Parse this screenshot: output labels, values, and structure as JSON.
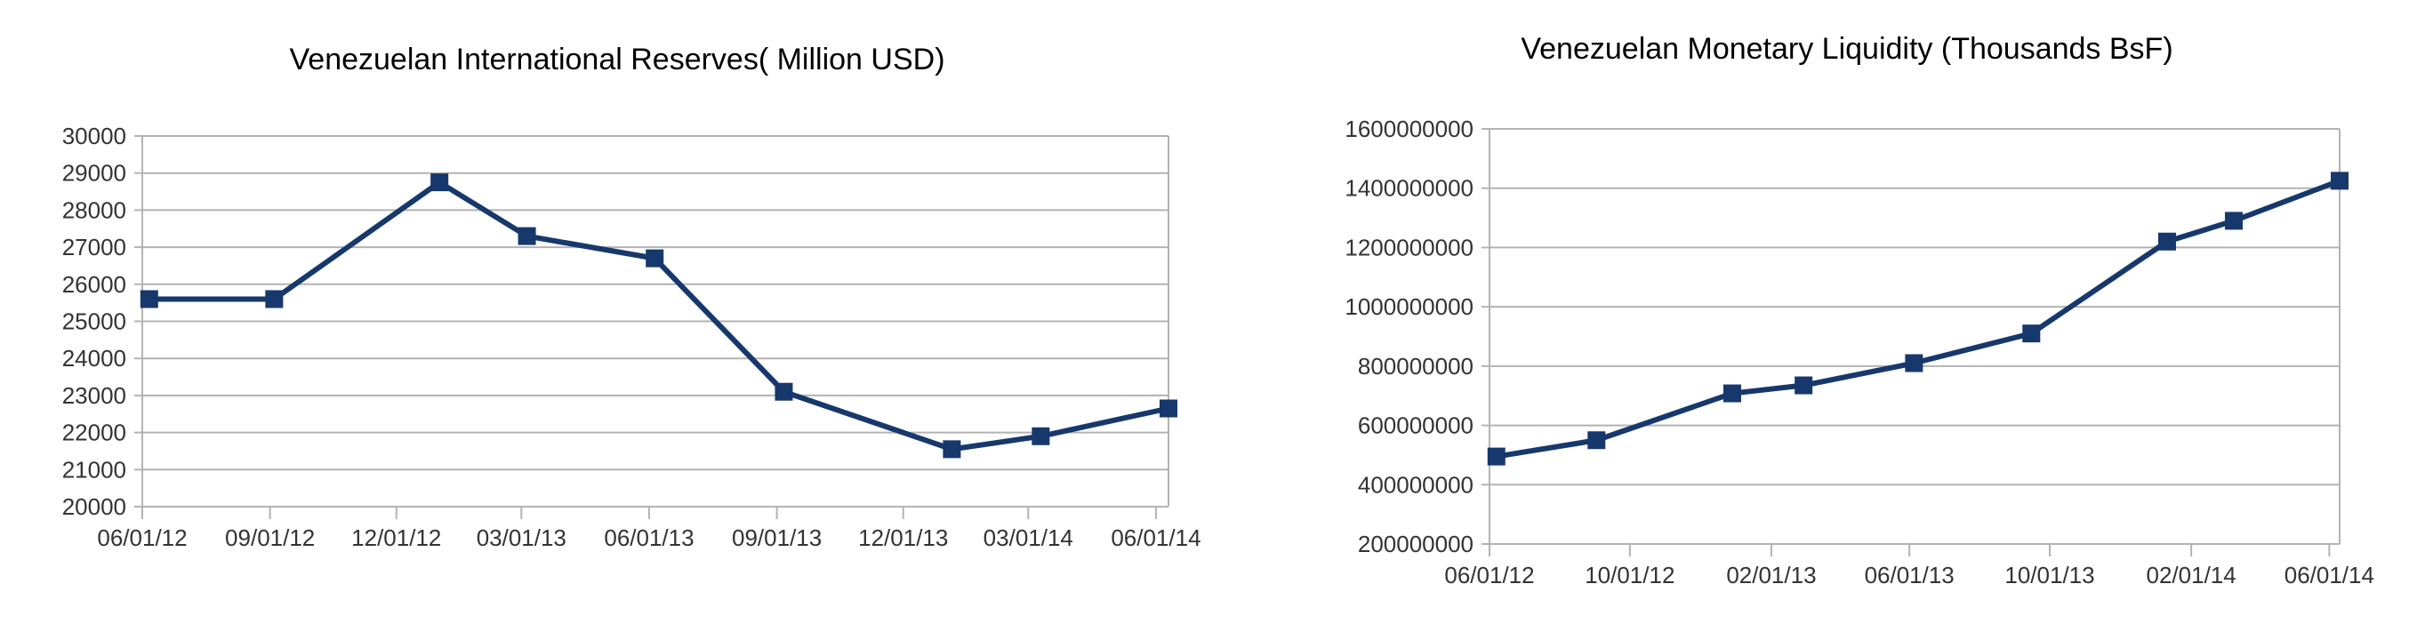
{
  "colors": {
    "series": "#17386c",
    "grid": "#b3b3b3",
    "axis": "#b3b3b3",
    "text": "#333333",
    "title": "#333333"
  },
  "chart_data": [
    {
      "type": "line",
      "title": "Venezuelan International Reserves( Million USD)",
      "xlabel": "",
      "ylabel": "",
      "x_axis_type": "date",
      "x_tick_labels": [
        "06/01/12",
        "09/01/12",
        "12/01/12",
        "03/01/13",
        "06/01/13",
        "09/01/13",
        "12/01/13",
        "03/01/14",
        "06/01/14"
      ],
      "x_tick_dates": [
        "2012-06-01",
        "2012-09-01",
        "2012-12-01",
        "2013-03-01",
        "2013-06-01",
        "2013-09-01",
        "2013-12-01",
        "2014-03-01",
        "2014-06-01"
      ],
      "xlim": [
        "2012-06-01",
        "2014-06-10"
      ],
      "ylim": [
        20000,
        30000
      ],
      "y_tick_labels": [
        "20000",
        "21000",
        "22000",
        "23000",
        "24000",
        "25000",
        "26000",
        "27000",
        "28000",
        "29000",
        "30000"
      ],
      "y_ticks": [
        20000,
        21000,
        22000,
        23000,
        24000,
        25000,
        26000,
        27000,
        28000,
        29000,
        30000
      ],
      "grid": true,
      "marker": "square",
      "series": [
        {
          "x": [
            "2012-06-06",
            "2012-09-04",
            "2013-01-01",
            "2013-03-05",
            "2013-06-05",
            "2013-09-06",
            "2014-01-05",
            "2014-03-10",
            "2014-06-10"
          ],
          "values": [
            25600,
            25600,
            28750,
            27300,
            26700,
            23100,
            21550,
            21900,
            22650
          ]
        }
      ]
    },
    {
      "type": "line",
      "title": "Venezuelan Monetary Liquidity (Thousands BsF)",
      "xlabel": "",
      "ylabel": "",
      "x_axis_type": "date",
      "x_tick_labels": [
        "06/01/12",
        "10/01/12",
        "02/01/13",
        "06/01/13",
        "10/01/13",
        "02/01/14",
        "06/01/14"
      ],
      "x_tick_dates": [
        "2012-06-01",
        "2012-10-01",
        "2013-02-01",
        "2013-06-01",
        "2013-10-01",
        "2014-02-01",
        "2014-06-01"
      ],
      "xlim": [
        "2012-06-01",
        "2014-06-10"
      ],
      "ylim": [
        200000000,
        1600000000
      ],
      "y_tick_labels": [
        "200000000",
        "400000000",
        "600000000",
        "800000000",
        "1000000000",
        "1200000000",
        "1400000000",
        "1600000000"
      ],
      "y_ticks": [
        200000000,
        400000000,
        600000000,
        800000000,
        1000000000,
        1200000000,
        1400000000,
        1600000000
      ],
      "grid": true,
      "marker": "square",
      "series": [
        {
          "x": [
            "2012-06-07",
            "2012-09-02",
            "2012-12-29",
            "2013-03-01",
            "2013-06-05",
            "2013-09-15",
            "2014-01-11",
            "2014-03-10",
            "2014-06-10"
          ],
          "values": [
            495000000,
            550000000,
            708000000,
            735000000,
            810000000,
            910000000,
            1220000000,
            1290000000,
            1425000000
          ]
        }
      ]
    }
  ]
}
